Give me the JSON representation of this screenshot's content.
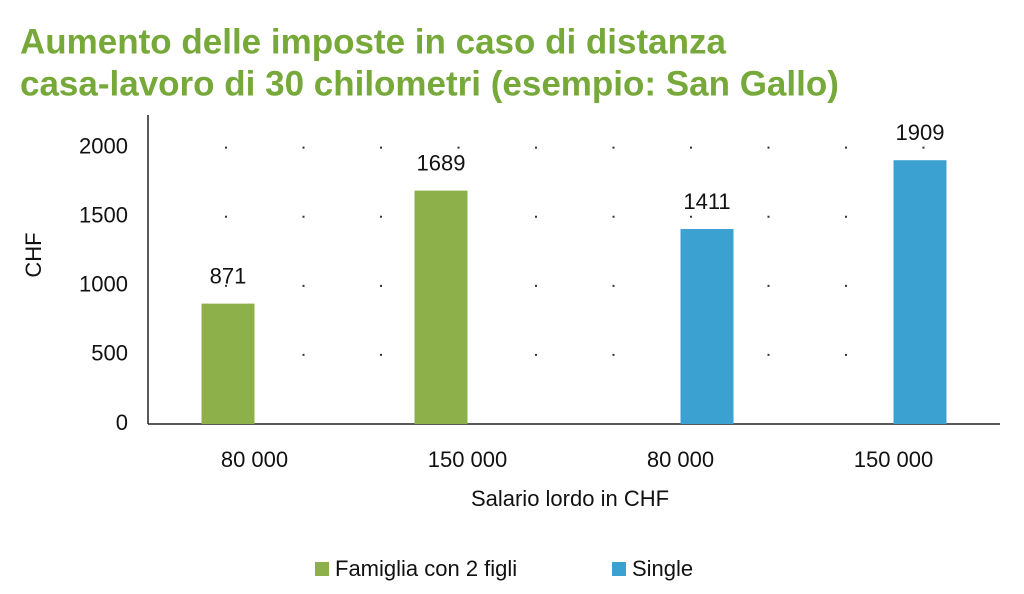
{
  "chart_data": {
    "type": "bar",
    "title": [
      "Aumento delle imposte in caso di distanza",
      "casa-lavoro di 30 chilometri (esempio: San Gallo)"
    ],
    "x_label": "Salario lordo in CHF",
    "y_label": "CHF",
    "categories": [
      "80 000",
      "150 000",
      "80 000",
      "150 000"
    ],
    "series": [
      {
        "name": "Famiglia con 2 figli",
        "color": "#8db04a",
        "values": [
          871,
          1689,
          null,
          null
        ]
      },
      {
        "name": "Single",
        "color": "#3aa1d0",
        "values": [
          null,
          null,
          1411,
          1909
        ]
      }
    ],
    "ylim": [
      0,
      2200
    ],
    "yticks": [
      0,
      500,
      1000,
      1500,
      2000
    ],
    "grid": true,
    "legend": "bottom"
  }
}
